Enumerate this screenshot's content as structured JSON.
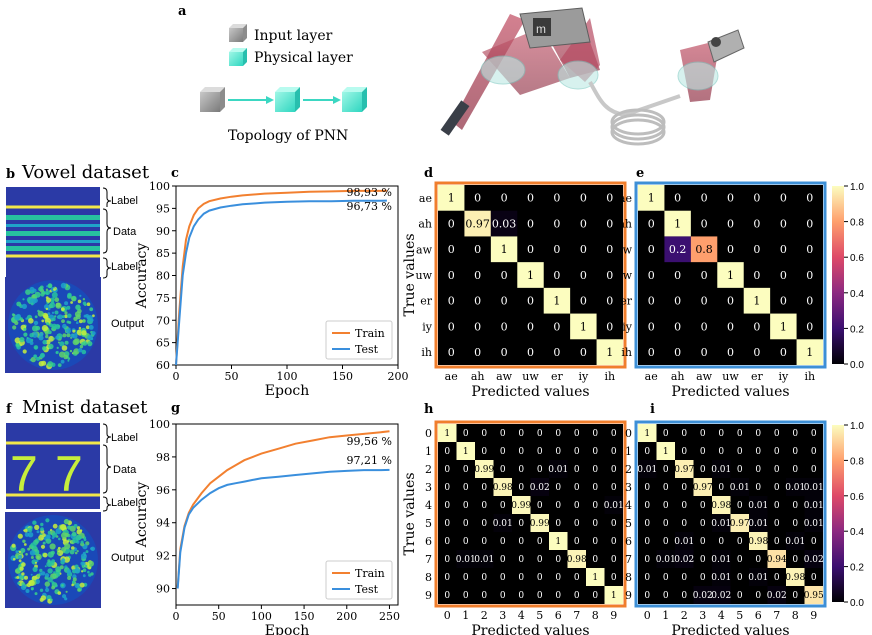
{
  "panel_letters": {
    "a": "a",
    "b": "b",
    "c": "c",
    "d": "d",
    "e": "e",
    "f": "f",
    "g": "g",
    "h": "h",
    "i": "i"
  },
  "topology": {
    "legend_input": "Input layer",
    "legend_physical": "Physical layer",
    "caption": "Topology of PNN"
  },
  "vowel": {
    "title": "Vowel dataset",
    "label_top": "Label",
    "label_data": "Data",
    "label_bottom": "Label",
    "label_output": "Output"
  },
  "mnist": {
    "title": "Mnist dataset",
    "label_top": "Label",
    "label_data": "Data",
    "label_bottom": "Label",
    "label_output": "Output",
    "digits": [
      "7",
      "7"
    ]
  },
  "colorbar_ticks": [
    "0.0",
    "0.2",
    "0.4",
    "0.6",
    "0.8",
    "1.0"
  ],
  "colors": {
    "train": "#f28030",
    "test": "#3a8fdd",
    "box_orange": "#f07e2c",
    "box_blue": "#3d8fd6",
    "dataset_bg": "#2b3aa6",
    "stripe_yellow": "#f2e84a",
    "stripe_green": "#27c39f"
  },
  "chart_data": [
    {
      "id": "c",
      "type": "line",
      "xlabel": "Epoch",
      "ylabel": "Accuracy",
      "xlim": [
        0,
        200
      ],
      "ylim": [
        60,
        100
      ],
      "xticks": [
        0,
        50,
        100,
        150,
        200
      ],
      "yticks": [
        60,
        65,
        70,
        75,
        80,
        85,
        90,
        95,
        100
      ],
      "series": [
        {
          "name": "Train",
          "x": [
            0,
            3,
            6,
            9,
            12,
            16,
            20,
            25,
            30,
            40,
            50,
            60,
            70,
            80,
            100,
            120,
            140,
            160,
            180,
            190
          ],
          "values": [
            60,
            72,
            82,
            88,
            91,
            93.5,
            95,
            96,
            96.6,
            97.2,
            97.6,
            97.9,
            98.1,
            98.3,
            98.5,
            98.7,
            98.8,
            98.9,
            98.9,
            98.93
          ]
        },
        {
          "name": "Test",
          "x": [
            0,
            3,
            6,
            9,
            12,
            16,
            20,
            25,
            30,
            40,
            50,
            60,
            70,
            80,
            100,
            120,
            140,
            160,
            180,
            190
          ],
          "values": [
            60,
            70,
            80,
            85,
            88.5,
            91,
            92.5,
            93.8,
            94.5,
            95.2,
            95.6,
            95.9,
            96.1,
            96.3,
            96.5,
            96.6,
            96.6,
            96.7,
            96.7,
            96.73
          ]
        }
      ],
      "annotations": [
        "98,93 %",
        "96,73 %"
      ],
      "legend": "bottom-right"
    },
    {
      "id": "g",
      "type": "line",
      "xlabel": "Epoch",
      "ylabel": "Accuracy",
      "xlim": [
        0,
        260
      ],
      "ylim": [
        89,
        100
      ],
      "xticks": [
        0,
        50,
        100,
        150,
        200,
        250
      ],
      "yticks": [
        90,
        92,
        94,
        96,
        98,
        100
      ],
      "series": [
        {
          "name": "Train",
          "x": [
            2,
            5,
            10,
            15,
            20,
            30,
            40,
            50,
            60,
            70,
            80,
            90,
            100,
            120,
            140,
            160,
            180,
            200,
            220,
            240,
            250
          ],
          "values": [
            90.1,
            92.4,
            93.8,
            94.6,
            95.1,
            95.8,
            96.4,
            96.8,
            97.2,
            97.5,
            97.8,
            98.0,
            98.2,
            98.5,
            98.8,
            99.0,
            99.2,
            99.3,
            99.4,
            99.5,
            99.56
          ]
        },
        {
          "name": "Test",
          "x": [
            2,
            5,
            10,
            15,
            20,
            30,
            40,
            50,
            60,
            70,
            80,
            90,
            100,
            120,
            140,
            160,
            180,
            200,
            220,
            240,
            250
          ],
          "values": [
            90.0,
            92.2,
            93.7,
            94.5,
            94.9,
            95.4,
            95.8,
            96.1,
            96.3,
            96.4,
            96.5,
            96.6,
            96.7,
            96.8,
            96.9,
            97.0,
            97.1,
            97.15,
            97.2,
            97.2,
            97.21
          ]
        }
      ],
      "annotations": [
        "99,56 %",
        "97,21 %"
      ],
      "legend": "bottom-right"
    },
    {
      "id": "d",
      "type": "heatmap",
      "xlabel": "Predicted values",
      "ylabel": "True values",
      "labels": [
        "ae",
        "ah",
        "aw",
        "uw",
        "er",
        "iy",
        "ih"
      ],
      "matrix": [
        [
          "1",
          "0",
          "0",
          "0",
          "0",
          "0",
          "0"
        ],
        [
          "0",
          "0.97",
          "0.03",
          "0",
          "0",
          "0",
          "0"
        ],
        [
          "0",
          "0",
          "1",
          "0",
          "0",
          "0",
          "0"
        ],
        [
          "0",
          "0",
          "0",
          "1",
          "0",
          "0",
          "0"
        ],
        [
          "0",
          "0",
          "0",
          "0",
          "1",
          "0",
          "0"
        ],
        [
          "0",
          "0",
          "0",
          "0",
          "0",
          "1",
          "0"
        ],
        [
          "0",
          "0",
          "0",
          "0",
          "0",
          "0",
          "1"
        ]
      ]
    },
    {
      "id": "e",
      "type": "heatmap",
      "xlabel": "Predicted values",
      "ylabel": "",
      "labels": [
        "ae",
        "ah",
        "aw",
        "uw",
        "er",
        "iy",
        "ih"
      ],
      "matrix": [
        [
          "1",
          "0",
          "0",
          "0",
          "0",
          "0",
          "0"
        ],
        [
          "0",
          "1",
          "0",
          "0",
          "0",
          "0",
          "0"
        ],
        [
          "0",
          "0.2",
          "0.8",
          "0",
          "0",
          "0",
          "0"
        ],
        [
          "0",
          "0",
          "0",
          "1",
          "0",
          "0",
          "0"
        ],
        [
          "0",
          "0",
          "0",
          "0",
          "1",
          "0",
          "0"
        ],
        [
          "0",
          "0",
          "0",
          "0",
          "0",
          "1",
          "0"
        ],
        [
          "0",
          "0",
          "0",
          "0",
          "0",
          "0",
          "1"
        ]
      ]
    },
    {
      "id": "h",
      "type": "heatmap",
      "xlabel": "Predicted values",
      "ylabel": "True values",
      "labels": [
        "0",
        "1",
        "2",
        "3",
        "4",
        "5",
        "6",
        "7",
        "8",
        "9"
      ],
      "matrix": [
        [
          "1",
          "0",
          "0",
          "0",
          "0",
          "0",
          "0",
          "0",
          "0",
          "0"
        ],
        [
          "0",
          "1",
          "0",
          "0",
          "0",
          "0",
          "0",
          "0",
          "0",
          "0"
        ],
        [
          "0",
          "0",
          "0.99",
          "0",
          "0",
          "0",
          "0.01",
          "0",
          "0",
          "0"
        ],
        [
          "0",
          "0",
          "0",
          "0.98",
          "0",
          "0.02",
          "0",
          "0",
          "0",
          "0"
        ],
        [
          "0",
          "0",
          "0",
          "0",
          "0.99",
          "0",
          "0",
          "0",
          "0",
          "0.01"
        ],
        [
          "0",
          "0",
          "0",
          "0.01",
          "0",
          "0.99",
          "0",
          "0",
          "0",
          "0"
        ],
        [
          "0",
          "0",
          "0",
          "0",
          "0",
          "0",
          "1",
          "0",
          "0",
          "0"
        ],
        [
          "0",
          "0.01",
          "0.01",
          "0",
          "0",
          "0",
          "0",
          "0.98",
          "0",
          "0"
        ],
        [
          "0",
          "0",
          "0",
          "0",
          "0",
          "0",
          "0",
          "0",
          "1",
          "0"
        ],
        [
          "0",
          "0",
          "0",
          "0",
          "0",
          "0",
          "0",
          "0",
          "0",
          "1"
        ]
      ]
    },
    {
      "id": "i",
      "type": "heatmap",
      "xlabel": "Predicted values",
      "ylabel": "",
      "labels": [
        "0",
        "1",
        "2",
        "3",
        "4",
        "5",
        "6",
        "7",
        "8",
        "9"
      ],
      "matrix": [
        [
          "1",
          "0",
          "0",
          "0",
          "0",
          "0",
          "0",
          "0",
          "0",
          "0"
        ],
        [
          "0",
          "1",
          "0",
          "0",
          "0",
          "0",
          "0",
          "0",
          "0",
          "0"
        ],
        [
          "0.01",
          "0",
          "0.97",
          "0",
          "0.01",
          "0",
          "0",
          "0",
          "0",
          "0"
        ],
        [
          "0",
          "0",
          "0",
          "0.97",
          "0",
          "0.01",
          "0",
          "0",
          "0.01",
          "0.01"
        ],
        [
          "0",
          "0",
          "0",
          "0",
          "0.98",
          "0",
          "0.01",
          "0",
          "0",
          "0.01"
        ],
        [
          "0",
          "0",
          "0",
          "0",
          "0.01",
          "0.97",
          "0.01",
          "0",
          "0",
          "0.01"
        ],
        [
          "0",
          "0",
          "0.01",
          "0",
          "0",
          "0",
          "0.98",
          "0",
          "0.01",
          "0"
        ],
        [
          "0",
          "0.01",
          "0.02",
          "0",
          "0.01",
          "0",
          "0",
          "0.94",
          "0",
          "0.02"
        ],
        [
          "0",
          "0",
          "0",
          "0",
          "0.01",
          "0",
          "0.01",
          "0",
          "0.98",
          "0"
        ],
        [
          "0",
          "0",
          "0",
          "0.02",
          "0.02",
          "0",
          "0",
          "0.02",
          "0",
          "0.95"
        ]
      ]
    }
  ]
}
